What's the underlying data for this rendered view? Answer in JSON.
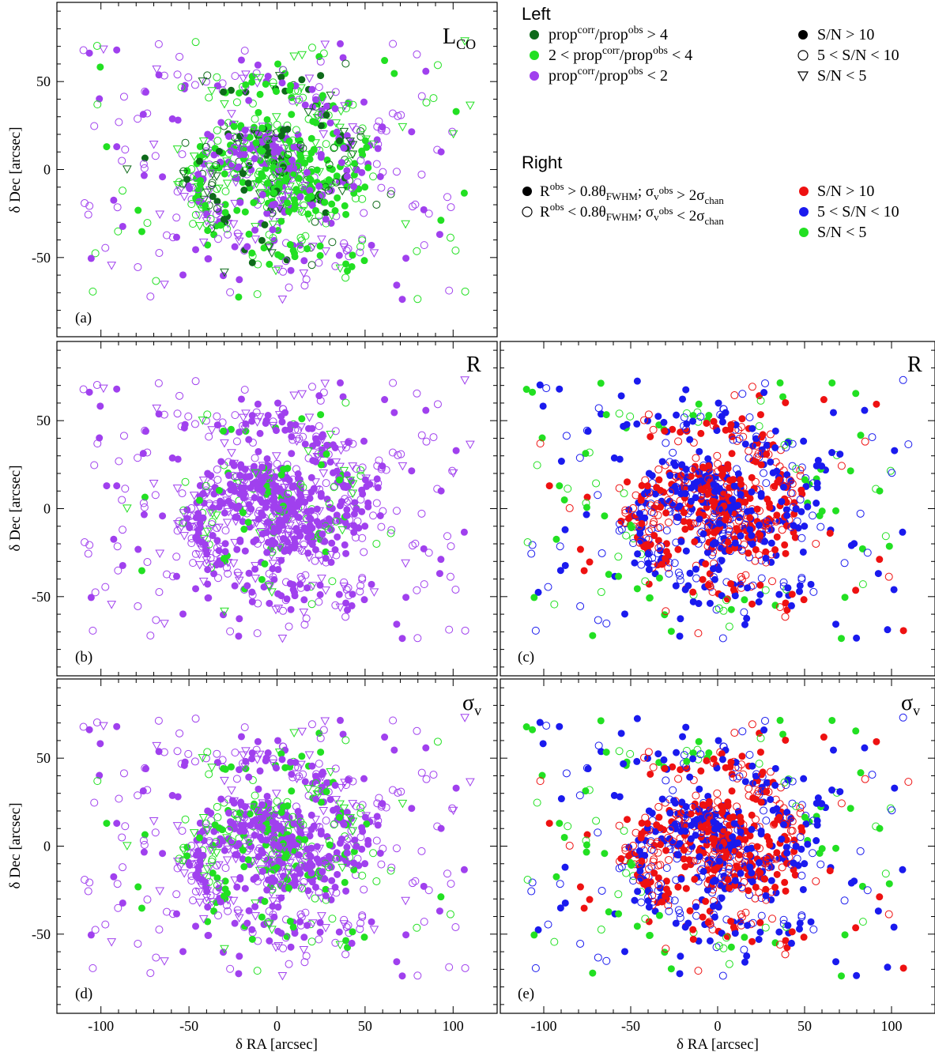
{
  "chart_data": [
    {
      "type": "scatter",
      "panel": "(a)",
      "label": "L",
      "label_sub": "CO",
      "ylabel": "δ Dec [arcsec]",
      "xlim": [
        -125,
        125
      ],
      "ylim": [
        -95,
        95
      ],
      "xticks": [
        "-100",
        "-50",
        "0",
        "50",
        "100"
      ],
      "yticks": [
        "50",
        "0",
        "-50"
      ],
      "color_scheme": "left",
      "group_fractions": {
        "dark_green": 0.12,
        "green": 0.38,
        "purple": 0.5
      }
    },
    {
      "type": "scatter",
      "panel": "(b)",
      "label": "R",
      "ylabel": "δ Dec [arcsec]",
      "xlim": [
        -125,
        125
      ],
      "ylim": [
        -95,
        95
      ],
      "xticks": [
        "-100",
        "-50",
        "0",
        "50",
        "100"
      ],
      "yticks": [
        "50",
        "0",
        "-50"
      ],
      "color_scheme": "left",
      "group_fractions": {
        "dark_green": 0.0,
        "green": 0.12,
        "purple": 0.88
      }
    },
    {
      "type": "scatter",
      "panel": "(c)",
      "label": "R",
      "xlim": [
        -125,
        125
      ],
      "ylim": [
        -95,
        95
      ],
      "xticks": [
        "-100",
        "-50",
        "0",
        "50",
        "100"
      ],
      "yticks": [
        "50",
        "0",
        "-50"
      ],
      "color_scheme": "right",
      "group_fractions": {
        "red": 0.33,
        "blue": 0.47,
        "green": 0.2
      }
    },
    {
      "type": "scatter",
      "panel": "(d)",
      "label": "σ",
      "label_sub": "v",
      "xlabel": "δ RA [arcsec]",
      "ylabel": "δ Dec [arcsec]",
      "xlim": [
        -125,
        125
      ],
      "ylim": [
        -95,
        95
      ],
      "xticks": [
        "-100",
        "-50",
        "0",
        "50",
        "100"
      ],
      "yticks": [
        "50",
        "0",
        "-50"
      ],
      "color_scheme": "left",
      "group_fractions": {
        "dark_green": 0.0,
        "green": 0.22,
        "purple": 0.78
      }
    },
    {
      "type": "scatter",
      "panel": "(e)",
      "label": "σ",
      "label_sub": "v",
      "xlabel": "δ RA [arcsec]",
      "xlim": [
        -125,
        125
      ],
      "ylim": [
        -95,
        95
      ],
      "xticks": [
        "-100",
        "-50",
        "0",
        "50",
        "100"
      ],
      "yticks": [
        "50",
        "0",
        "-50"
      ],
      "color_scheme": "right",
      "group_fractions": {
        "red": 0.35,
        "blue": 0.45,
        "green": 0.2
      }
    }
  ],
  "legend": {
    "left_title": "Left",
    "left_colors": [
      {
        "color": "#0e6a1a",
        "text": "prop^corr/prop^obs > 4"
      },
      {
        "color": "#22e022",
        "text": "2 < prop^corr/prop^obs < 4"
      },
      {
        "color": "#a040ee",
        "text": "prop^corr/prop^obs < 2"
      }
    ],
    "left_symbols": [
      {
        "symbol": "filled-circle",
        "text": "S/N > 10"
      },
      {
        "symbol": "open-circle",
        "text": "5 < S/N < 10"
      },
      {
        "symbol": "open-triangle",
        "text": "S/N < 5"
      }
    ],
    "right_title": "Right",
    "right_symbols": [
      {
        "symbol": "filled-circle",
        "text": "R^obs > 0.8θ_FWHM;  σ_v^obs > 2σ_chan"
      },
      {
        "symbol": "open-circle",
        "text": "R^obs < 0.8θ_FWHM;  σ_v^obs < 2σ_chan"
      }
    ],
    "right_colors": [
      {
        "color": "#ee1111",
        "text": "S/N > 10"
      },
      {
        "color": "#1a1aee",
        "text": "5 < S/N < 10"
      },
      {
        "color": "#22e022",
        "text": "S/N < 5"
      }
    ]
  },
  "colors": {
    "dark_green": "#0e6a1a",
    "green": "#22e022",
    "purple": "#a040ee",
    "red": "#ee1111",
    "blue": "#1a1aee"
  }
}
